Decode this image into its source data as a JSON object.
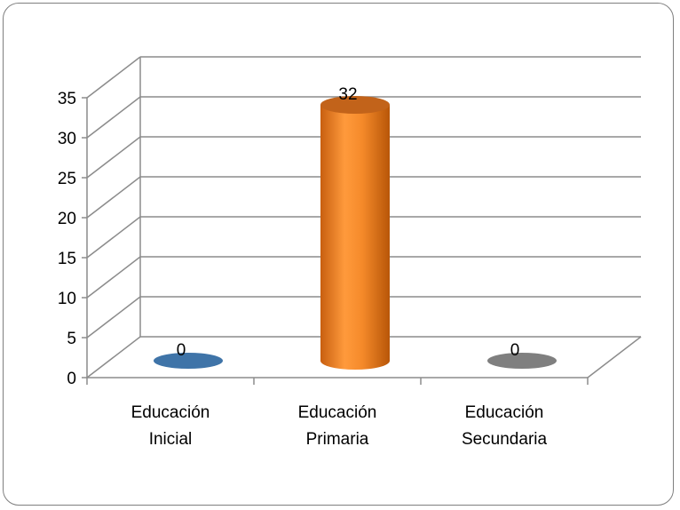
{
  "chart_data": {
    "type": "bar",
    "style": "3d-cylinder",
    "categories": [
      "Educación Inicial",
      "Educación Primaria",
      "Educación Secundaria"
    ],
    "category_lines": [
      [
        "Educación",
        "Inicial"
      ],
      [
        "Educación",
        "Primaria"
      ],
      [
        "Educación",
        "Secundaria"
      ]
    ],
    "values": [
      0,
      32,
      0
    ],
    "data_labels": [
      "0",
      "32",
      "0"
    ],
    "y_ticks": [
      "0",
      "5",
      "10",
      "15",
      "20",
      "25",
      "30",
      "35"
    ],
    "ylim": [
      0,
      35
    ],
    "grid": true,
    "legend": "none",
    "colors": [
      "#3f74a8",
      "#f07f1e",
      "#7f7f7f"
    ]
  }
}
